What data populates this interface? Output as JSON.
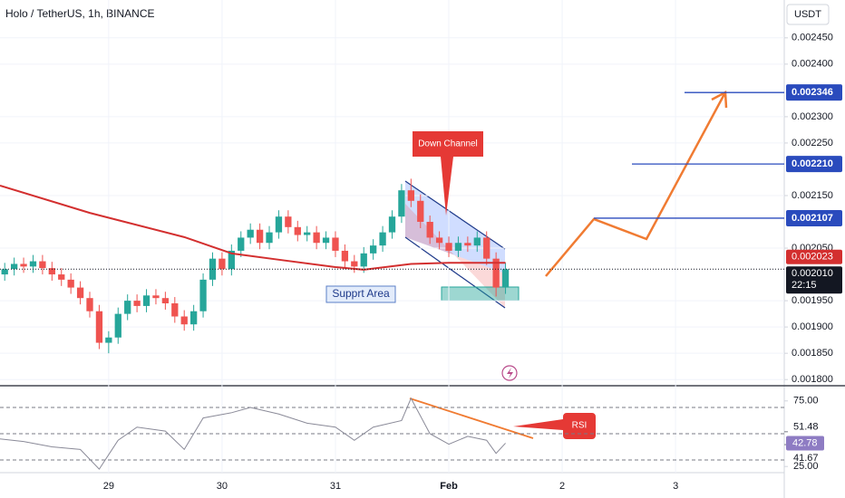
{
  "header": {
    "title": "Holo / TetherUS, 1h, BINANCE",
    "currency": "USDT"
  },
  "chart_data": [
    {
      "type": "candlestick",
      "x": [
        2,
        4,
        6,
        8,
        10,
        12,
        14,
        16,
        18,
        20,
        22,
        24,
        26,
        28,
        30,
        32,
        34,
        36,
        38,
        40,
        42,
        44,
        46,
        48,
        50,
        52,
        54,
        56,
        58,
        60,
        62,
        64,
        66,
        68,
        70,
        72,
        74,
        76,
        78,
        80,
        82,
        84,
        86,
        88,
        90,
        92,
        94,
        96,
        98,
        100,
        102,
        104,
        106,
        108
      ],
      "open": [
        0.002,
        0.00201,
        0.00202,
        0.002015,
        0.002025,
        0.002012,
        0.002,
        0.00199,
        0.001975,
        0.001955,
        0.00193,
        0.00187,
        0.00188,
        0.001925,
        0.00195,
        0.00194,
        0.00196,
        0.001955,
        0.001945,
        0.00192,
        0.001905,
        0.00193,
        0.00199,
        0.00203,
        0.00201,
        0.002045,
        0.00207,
        0.002085,
        0.00206,
        0.00208,
        0.00211,
        0.00209,
        0.002075,
        0.00208,
        0.00206,
        0.00207,
        0.002045,
        0.002025,
        0.002015,
        0.00204,
        0.002055,
        0.00208,
        0.00211,
        0.00216,
        0.00214,
        0.0021,
        0.00207,
        0.00206,
        0.002045,
        0.00206,
        0.002055,
        0.00207,
        0.00203,
        0.001975
      ],
      "high": [
        0.002022,
        0.002032,
        0.002032,
        0.002037,
        0.002037,
        0.002024,
        0.002012,
        0.002002,
        0.001987,
        0.001967,
        0.001942,
        0.001892,
        0.001937,
        0.001962,
        0.001962,
        0.001972,
        0.001972,
        0.001967,
        0.001957,
        0.001932,
        0.001942,
        0.002002,
        0.002042,
        0.002042,
        0.002057,
        0.002082,
        0.002097,
        0.002097,
        0.002092,
        0.002122,
        0.002122,
        0.002102,
        0.002092,
        0.002092,
        0.002082,
        0.002082,
        0.002057,
        0.002037,
        0.002052,
        0.002067,
        0.002092,
        0.002122,
        0.002172,
        0.002182,
        0.002152,
        0.002112,
        0.002082,
        0.002072,
        0.002072,
        0.002072,
        0.002082,
        0.002082,
        0.002042,
        0.002022
      ],
      "low": [
        0.001988,
        0.001998,
        0.002003,
        0.002003,
        0.002,
        0.001988,
        0.001978,
        0.001963,
        0.001943,
        0.001918,
        0.001858,
        0.00185,
        0.001868,
        0.001913,
        0.001928,
        0.001928,
        0.001943,
        0.001933,
        0.001908,
        0.001893,
        0.001893,
        0.001918,
        0.001978,
        0.001998,
        0.001998,
        0.002033,
        0.002058,
        0.002048,
        0.002048,
        0.002068,
        0.002078,
        0.002063,
        0.002063,
        0.002048,
        0.002048,
        0.002033,
        0.002013,
        0.002003,
        0.002003,
        0.002028,
        0.002043,
        0.002068,
        0.002098,
        0.002128,
        0.002088,
        0.002058,
        0.002048,
        0.002033,
        0.002033,
        0.002043,
        0.002043,
        0.002018,
        0.001958,
        0.001963
      ],
      "close": [
        0.00201,
        0.00202,
        0.002015,
        0.002025,
        0.002012,
        0.002,
        0.00199,
        0.001975,
        0.001955,
        0.00193,
        0.00187,
        0.00188,
        0.001925,
        0.00195,
        0.00194,
        0.00196,
        0.001955,
        0.001945,
        0.00192,
        0.001905,
        0.00193,
        0.00199,
        0.00203,
        0.00201,
        0.002045,
        0.00207,
        0.002085,
        0.00206,
        0.00208,
        0.00211,
        0.00209,
        0.002075,
        0.00208,
        0.00206,
        0.00207,
        0.002045,
        0.002025,
        0.002015,
        0.00204,
        0.002055,
        0.00208,
        0.00211,
        0.00216,
        0.00214,
        0.0021,
        0.00207,
        0.00206,
        0.002045,
        0.00206,
        0.002055,
        0.00207,
        0.00203,
        0.001975,
        0.00201
      ],
      "up_color": "#26a69a",
      "down_color": "#ef5350",
      "xlim": [
        1,
        167
      ],
      "xticks": [
        {
          "value": 24,
          "label": "29"
        },
        {
          "value": 48,
          "label": "30"
        },
        {
          "value": 72,
          "label": "31"
        },
        {
          "value": 96,
          "label": "Feb"
        },
        {
          "value": 120,
          "label": "2"
        },
        {
          "value": 144,
          "label": "3"
        }
      ],
      "ylim": [
        0.00179,
        0.002522
      ],
      "yticks": [
        {
          "value": 0.00245,
          "label": "0.002450"
        },
        {
          "value": 0.0024,
          "label": "0.002400"
        },
        {
          "value": 0.0023,
          "label": "0.002300"
        },
        {
          "value": 0.00225,
          "label": "0.002250"
        },
        {
          "value": 0.00215,
          "label": "0.002150"
        },
        {
          "value": 0.00205,
          "label": "0.002050"
        },
        {
          "value": 0.00195,
          "label": "0.001950"
        },
        {
          "value": 0.0019,
          "label": "0.001900"
        },
        {
          "value": 0.00185,
          "label": "0.001850"
        },
        {
          "value": 0.0018,
          "label": "0.001800"
        }
      ],
      "moving_average": {
        "color": "#d32f2f",
        "x": [
          1,
          20,
          40,
          50,
          60,
          72,
          78,
          88,
          96,
          108
        ],
        "values": [
          0.002169,
          0.002117,
          0.002071,
          0.00204,
          0.002028,
          0.002014,
          0.002009,
          0.00202,
          0.002022,
          0.002022
        ],
        "last": 0.002023
      },
      "levels": [
        0.002346,
        {
          "value": 0.00221,
          "label": "0.002210"
        },
        0.002107
      ],
      "level_color": "#2a4bbd",
      "last_price": {
        "value": 0.00201,
        "label": "0.002010"
      },
      "countdown": "22:15",
      "annotations": {
        "channel": "Down Channel",
        "support": "Supprt Area",
        "rsi": "RSI"
      }
    },
    {
      "type": "line",
      "x": [
        1,
        6,
        12,
        18,
        22,
        26,
        30,
        36,
        40,
        44,
        50,
        54,
        60,
        66,
        72,
        76,
        80,
        86,
        88,
        92,
        96,
        100,
        104,
        106,
        108
      ],
      "values": [
        46,
        44,
        40,
        38,
        23,
        45,
        55,
        52,
        38,
        62,
        66,
        70,
        65,
        58,
        55,
        45,
        55,
        60,
        77,
        50,
        42,
        48,
        45,
        35,
        42.78
      ],
      "color": "#8a8a98",
      "ylim": [
        20.3,
        85.2
      ],
      "yticks": [
        {
          "value": 75,
          "label": "75.00"
        },
        {
          "value": 25,
          "label": "25.00"
        }
      ],
      "bands": [
        70,
        50,
        30
      ],
      "markers": [
        51.48,
        41.67
      ]
    }
  ]
}
